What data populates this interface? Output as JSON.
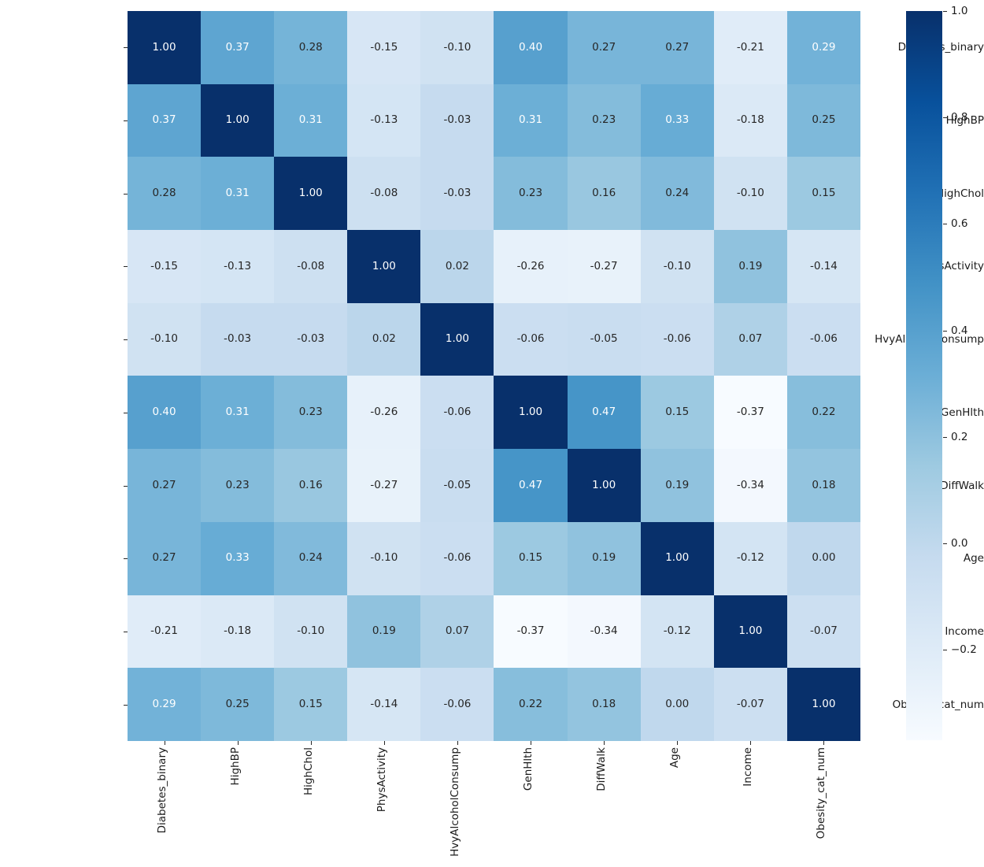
{
  "figure": {
    "background": "#ffffff",
    "axis_text_color": "#1a1a1a"
  },
  "chart_data": {
    "type": "heatmap",
    "title": "",
    "xlabel": "",
    "ylabel": "",
    "labels": [
      "Diabetes_binary",
      "HighBP",
      "HighChol",
      "PhysActivity",
      "HvyAlcoholConsump",
      "GenHlth",
      "DiffWalk",
      "Age",
      "Income",
      "Obesity_cat_num"
    ],
    "matrix": [
      [
        1.0,
        0.37,
        0.28,
        -0.15,
        -0.1,
        0.4,
        0.27,
        0.27,
        -0.21,
        0.29
      ],
      [
        0.37,
        1.0,
        0.31,
        -0.13,
        -0.03,
        0.31,
        0.23,
        0.33,
        -0.18,
        0.25
      ],
      [
        0.28,
        0.31,
        1.0,
        -0.08,
        -0.03,
        0.23,
        0.16,
        0.24,
        -0.1,
        0.15
      ],
      [
        -0.15,
        -0.13,
        -0.08,
        1.0,
        0.02,
        -0.26,
        -0.27,
        -0.1,
        0.19,
        -0.14
      ],
      [
        -0.1,
        -0.03,
        -0.03,
        0.02,
        1.0,
        -0.06,
        -0.05,
        -0.06,
        0.07,
        -0.06
      ],
      [
        0.4,
        0.31,
        0.23,
        -0.26,
        -0.06,
        1.0,
        0.47,
        0.15,
        -0.37,
        0.22
      ],
      [
        0.27,
        0.23,
        0.16,
        -0.27,
        -0.05,
        0.47,
        1.0,
        0.19,
        -0.34,
        0.18
      ],
      [
        0.27,
        0.33,
        0.24,
        -0.1,
        -0.06,
        0.15,
        0.19,
        1.0,
        -0.12,
        0.0
      ],
      [
        -0.21,
        -0.18,
        -0.1,
        0.19,
        0.07,
        -0.37,
        -0.34,
        -0.12,
        1.0,
        -0.07
      ],
      [
        0.29,
        0.25,
        0.15,
        -0.14,
        -0.06,
        0.22,
        0.18,
        0.0,
        -0.07,
        1.0
      ]
    ],
    "value_decimals": 2,
    "vmin": -0.37,
    "vmax": 1.0,
    "x_tick_rotation_deg": 90,
    "grid": false,
    "legend": false,
    "colormap": {
      "name": "Blues",
      "stops": [
        {
          "pos": 0.0,
          "color": "#f7fbff"
        },
        {
          "pos": 0.125,
          "color": "#deebf7"
        },
        {
          "pos": 0.25,
          "color": "#c6dbef"
        },
        {
          "pos": 0.375,
          "color": "#9ecae1"
        },
        {
          "pos": 0.5,
          "color": "#6baed6"
        },
        {
          "pos": 0.625,
          "color": "#4292c6"
        },
        {
          "pos": 0.75,
          "color": "#2171b5"
        },
        {
          "pos": 0.875,
          "color": "#08519c"
        },
        {
          "pos": 1.0,
          "color": "#08306b"
        }
      ]
    },
    "annotation_colors": {
      "on_light": "#262626",
      "on_dark": "#ffffff",
      "luminance_threshold": 0.408
    },
    "colorbar": {
      "position": "right",
      "tick_labels": [
        "1.0",
        "0.8",
        "0.6",
        "0.4",
        "0.2",
        "0.0",
        "−0.2"
      ],
      "tick_values": [
        1.0,
        0.8,
        0.6,
        0.4,
        0.2,
        0.0,
        -0.2
      ],
      "top_color": "#08306b",
      "bottom_color": "#f7fbff"
    }
  }
}
